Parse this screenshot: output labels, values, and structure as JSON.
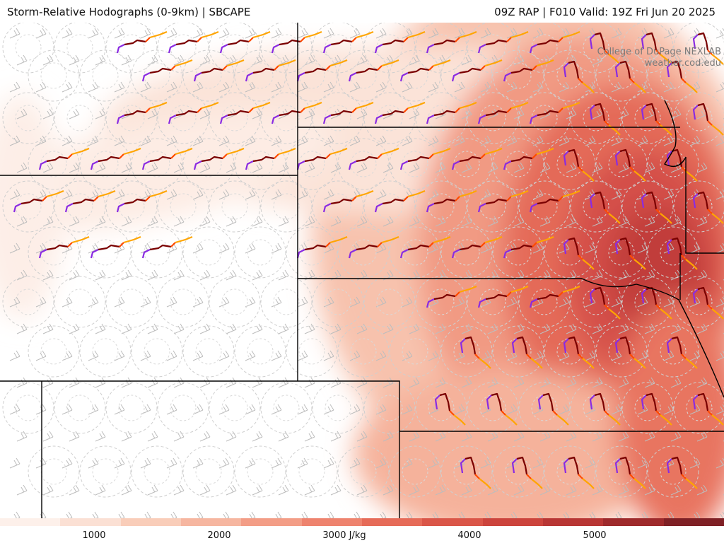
{
  "header": {
    "title_left": "Storm-Relative Hodographs (0-9km) | SBCAPE",
    "title_right": "09Z RAP | F010 Valid: 19Z Fri Jun 20 2025"
  },
  "credit": {
    "line1": "College of DuPage NEXLAB",
    "line2": "weather.cod.edu"
  },
  "colorbar": {
    "labels": [
      "1000",
      "2000",
      "3000 J/kg",
      "4000",
      "5000"
    ],
    "colors": [
      "#fdf0ea",
      "#fbe0d4",
      "#f9cdb9",
      "#f6b6a0",
      "#f39d86",
      "#ee836e",
      "#e66b58",
      "#da5648",
      "#cc443c",
      "#b83634",
      "#9e2a2c",
      "#7f2025"
    ]
  },
  "colors": {
    "state_border": "#000000",
    "barb": "#bdbdbd",
    "hodo_low": "#8a2be2",
    "hodo_mid": "#7a0000",
    "hodo_mid2": "#ff4a00",
    "hodo_high": "#ffa500"
  }
}
